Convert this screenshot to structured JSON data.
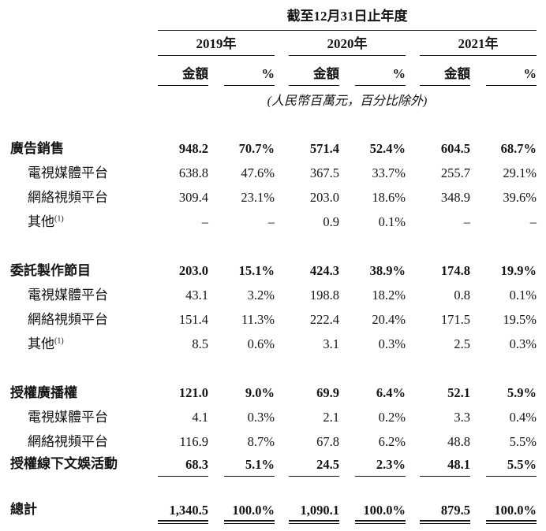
{
  "header": {
    "period_title": "截至12月31日止年度",
    "years": [
      "2019年",
      "2020年",
      "2021年"
    ],
    "amount_label": "金額",
    "percent_label": "%",
    "note": "(人民幣百萬元，百分比除外)"
  },
  "table": {
    "rows": [
      {
        "type": "section",
        "label": "廣告銷售",
        "values": [
          "948.2",
          "70.7%",
          "571.4",
          "52.4%",
          "604.5",
          "68.7%"
        ]
      },
      {
        "type": "sub",
        "label": "電視媒體平台",
        "values": [
          "638.8",
          "47.6%",
          "367.5",
          "33.7%",
          "255.7",
          "29.1%"
        ]
      },
      {
        "type": "sub",
        "label": "網絡視頻平台",
        "values": [
          "309.4",
          "23.1%",
          "203.0",
          "18.6%",
          "348.9",
          "39.6%"
        ]
      },
      {
        "type": "sub",
        "label": "其他",
        "sup": "(1)",
        "values": [
          "–",
          "–",
          "0.9",
          "0.1%",
          "–",
          "–"
        ]
      },
      {
        "type": "spacer"
      },
      {
        "type": "section",
        "label": "委託製作節目",
        "values": [
          "203.0",
          "15.1%",
          "424.3",
          "38.9%",
          "174.8",
          "19.9%"
        ]
      },
      {
        "type": "sub",
        "label": "電視媒體平台",
        "values": [
          "43.1",
          "3.2%",
          "198.8",
          "18.2%",
          "0.8",
          "0.1%"
        ]
      },
      {
        "type": "sub",
        "label": "網絡視頻平台",
        "values": [
          "151.4",
          "11.3%",
          "222.4",
          "20.4%",
          "171.5",
          "19.5%"
        ]
      },
      {
        "type": "sub",
        "label": "其他",
        "sup": "(1)",
        "values": [
          "8.5",
          "0.6%",
          "3.1",
          "0.3%",
          "2.5",
          "0.3%"
        ]
      },
      {
        "type": "spacer"
      },
      {
        "type": "section",
        "label": "授權廣播權",
        "values": [
          "121.0",
          "9.0%",
          "69.9",
          "6.4%",
          "52.1",
          "5.9%"
        ]
      },
      {
        "type": "sub",
        "label": "電視媒體平台",
        "values": [
          "4.1",
          "0.3%",
          "2.1",
          "0.2%",
          "3.3",
          "0.4%"
        ]
      },
      {
        "type": "sub",
        "label": "網絡視頻平台",
        "values": [
          "116.9",
          "8.7%",
          "67.8",
          "6.2%",
          "48.8",
          "5.5%"
        ]
      },
      {
        "type": "section-underline",
        "label": "授權線下文娛活動",
        "values": [
          "68.3",
          "5.1%",
          "24.5",
          "2.3%",
          "48.1",
          "5.5%"
        ]
      },
      {
        "type": "spacer"
      },
      {
        "type": "total",
        "label": "總計",
        "values": [
          "1,340.5",
          "100.0%",
          "1,090.1",
          "100.0%",
          "879.5",
          "100.0%"
        ]
      }
    ]
  }
}
